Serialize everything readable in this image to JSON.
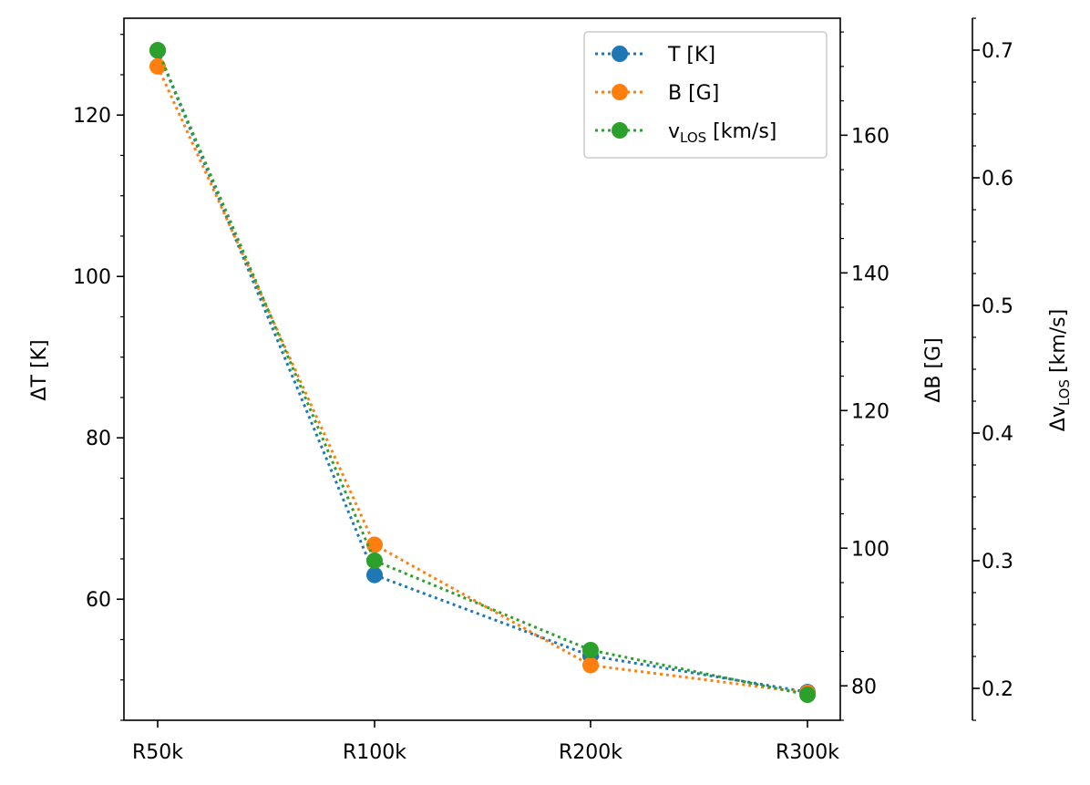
{
  "chart_data": {
    "type": "line",
    "categories": [
      "R50k",
      "R100k",
      "R200k",
      "R300k"
    ],
    "axes": {
      "left": {
        "label": "ΔT [K]",
        "ylim": [
          45,
          132
        ],
        "major_ticks": [
          60,
          80,
          100,
          120
        ],
        "minor_step": 5
      },
      "right": {
        "label": "ΔB [G]",
        "ylim": [
          75,
          177
        ],
        "major_ticks": [
          80,
          100,
          120,
          140,
          160
        ],
        "minor_step": 5
      },
      "far_right": {
        "label_main": "Δv",
        "label_sub": "LOS",
        "label_tail": " [km/s]",
        "ylim": [
          0.175,
          0.725
        ],
        "major_ticks": [
          0.2,
          0.3,
          0.4,
          0.5,
          0.6,
          0.7
        ],
        "minor_step": 0.025
      }
    },
    "series": [
      {
        "name": "T [K]",
        "axis": "left",
        "color": "#1f77b4",
        "values": [
          128,
          63,
          53,
          48.5
        ]
      },
      {
        "name": "B [G]",
        "axis": "right",
        "color": "#ff7f0e",
        "values": [
          170,
          100.5,
          83,
          79
        ]
      },
      {
        "name": "v",
        "name_sub": "LOS",
        "name_tail": " [km/s]",
        "axis": "far_right",
        "color": "#2ca02c",
        "values": [
          0.7,
          0.3,
          0.23,
          0.195
        ]
      }
    ],
    "legend": {
      "position": "top-right"
    },
    "grid": false
  }
}
